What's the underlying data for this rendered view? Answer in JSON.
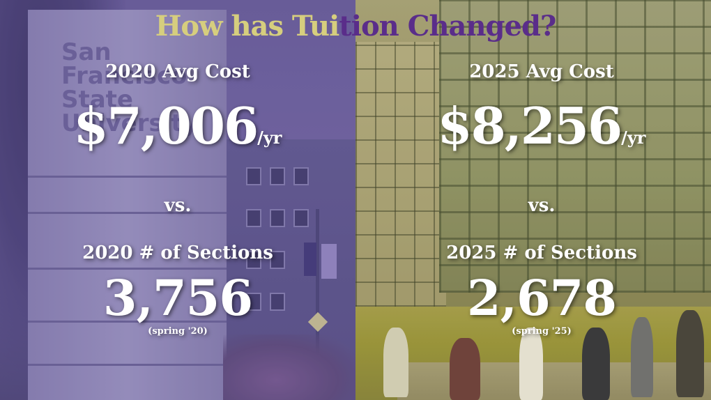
{
  "headline": {
    "part1": "How has Tui",
    "part2": "tion Changed?"
  },
  "left": {
    "cost_label": "2020 Avg Cost",
    "cost_value": "$7,006",
    "cost_unit": "/yr",
    "vs": "vs.",
    "sections_label": "2020 # of Sections",
    "sections_value": "3,756",
    "sections_note": "(spring '20)",
    "sign_text": "San Francisco State University"
  },
  "right": {
    "cost_label": "2025 Avg Cost",
    "cost_value": "$8,256",
    "cost_unit": "/yr",
    "vs": "vs.",
    "sections_label": "2025 # of Sections",
    "sections_value": "2,678",
    "sections_note": "(spring '25)"
  },
  "colors": {
    "headline_gold": "#d6ce7e",
    "headline_purple": "#5a2d8a",
    "left_tint": "#6b5f97",
    "right_tint": "#9a9568",
    "text": "#ffffff"
  }
}
